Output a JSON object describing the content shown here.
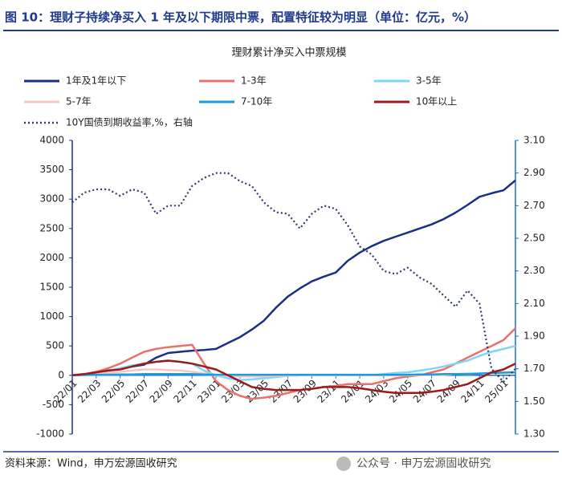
{
  "header": "图 10：理财子持续净买入 1 年及以下期限中票，配置特征较为明显（单位：亿元，%）",
  "source": "资料来源：Wind，申万宏源固收研究",
  "watermark": "公众号 · 申万宏源固收研究",
  "chart_data": {
    "type": "line",
    "title": "理财累计净买入中票规模",
    "categories": [
      "22/01",
      null,
      "22/03",
      null,
      "22/05",
      null,
      "22/07",
      null,
      "22/09",
      null,
      "22/11",
      null,
      "23/01",
      null,
      "23/03",
      null,
      "23/05",
      null,
      "23/07",
      null,
      "23/09",
      null,
      "23/11",
      null,
      "24/01",
      null,
      "24/03",
      null,
      "24/05",
      null,
      "24/07",
      null,
      "24/09",
      null,
      "24/11",
      null,
      "25/01",
      null
    ],
    "series": [
      {
        "name": "1年及1年以下",
        "color": "#1b2f86",
        "values": [
          0,
          10,
          40,
          80,
          110,
          150,
          180,
          300,
          380,
          400,
          420,
          430,
          450,
          550,
          650,
          780,
          930,
          1150,
          1340,
          1480,
          1600,
          1680,
          1750,
          1950,
          2090,
          2200,
          2290,
          2360,
          2430,
          2500,
          2570,
          2660,
          2770,
          2900,
          3040,
          3100,
          3150,
          3320
        ]
      },
      {
        "name": "1-3年",
        "color": "#e8706d",
        "values": [
          0,
          20,
          60,
          120,
          200,
          300,
          400,
          450,
          480,
          500,
          520,
          200,
          -100,
          -250,
          -350,
          -400,
          -380,
          -350,
          -300,
          -250,
          -230,
          -200,
          -180,
          -150,
          -150,
          -150,
          -100,
          -50,
          -20,
          0,
          50,
          100,
          200,
          300,
          400,
          500,
          600,
          800
        ]
      },
      {
        "name": "3-5年",
        "color": "#7fd6f2",
        "values": [
          0,
          10,
          40,
          80,
          120,
          170,
          200,
          230,
          250,
          230,
          200,
          80,
          0,
          -50,
          -80,
          -70,
          -50,
          -30,
          -10,
          0,
          0,
          0,
          0,
          0,
          0,
          0,
          20,
          40,
          50,
          80,
          110,
          150,
          200,
          250,
          330,
          400,
          450,
          500
        ]
      },
      {
        "name": "5-7年",
        "color": "#f4c7c3",
        "values": [
          0,
          5,
          20,
          40,
          60,
          80,
          100,
          100,
          90,
          80,
          60,
          30,
          0,
          -10,
          -20,
          -20,
          -20,
          -10,
          -10,
          0,
          0,
          0,
          0,
          0,
          0,
          0,
          0,
          0,
          0,
          0,
          10,
          10,
          20,
          20,
          30,
          40,
          50,
          60
        ]
      },
      {
        "name": "7-10年",
        "color": "#1a9bdc",
        "values": [
          0,
          5,
          10,
          10,
          15,
          15,
          20,
          20,
          20,
          20,
          20,
          15,
          10,
          10,
          10,
          10,
          10,
          10,
          10,
          10,
          10,
          10,
          10,
          10,
          10,
          10,
          10,
          10,
          10,
          15,
          15,
          20,
          20,
          25,
          30,
          40,
          45,
          50
        ]
      },
      {
        "name": "10年以上",
        "color": "#9b1b1b",
        "values": [
          0,
          20,
          50,
          80,
          100,
          150,
          200,
          230,
          250,
          230,
          200,
          150,
          100,
          0,
          -100,
          -200,
          -230,
          -250,
          -250,
          -250,
          -230,
          -200,
          -200,
          -200,
          -220,
          -250,
          -280,
          -300,
          -300,
          -300,
          -280,
          -250,
          -200,
          -150,
          -50,
          50,
          100,
          200
        ]
      },
      {
        "name": "10Y国债到期收益率,%，右轴",
        "color": "#2e3b6b",
        "axis": "y2",
        "dash": true,
        "values": [
          2.72,
          2.78,
          2.8,
          2.8,
          2.76,
          2.8,
          2.78,
          2.65,
          2.7,
          2.7,
          2.82,
          2.87,
          2.9,
          2.9,
          2.85,
          2.82,
          2.72,
          2.66,
          2.65,
          2.56,
          2.65,
          2.7,
          2.68,
          2.58,
          2.45,
          2.4,
          2.3,
          2.28,
          2.32,
          2.26,
          2.22,
          2.15,
          2.08,
          2.18,
          2.1,
          1.7,
          1.62,
          1.7
        ]
      }
    ],
    "ylim": [
      -1000,
      4000
    ],
    "yticks": [
      -1000,
      -500,
      0,
      500,
      1000,
      1500,
      2000,
      2500,
      3000,
      3500,
      4000
    ],
    "y2lim": [
      1.3,
      3.1
    ],
    "y2ticks": [
      {
        "value": 1.3,
        "label": "1.30"
      },
      {
        "value": 1.5,
        "label": "1.50"
      },
      {
        "value": 1.7,
        "label": "1.70"
      },
      {
        "value": 1.9,
        "label": "1.90"
      },
      {
        "value": 2.1,
        "label": "2.10"
      },
      {
        "value": 2.3,
        "label": "2.30"
      },
      {
        "value": 2.5,
        "label": "2.50"
      },
      {
        "value": 2.7,
        "label": "2.70"
      },
      {
        "value": 2.9,
        "label": "2.90"
      },
      {
        "value": 3.1,
        "label": "3.10"
      }
    ],
    "grid": false,
    "legend": "top"
  }
}
